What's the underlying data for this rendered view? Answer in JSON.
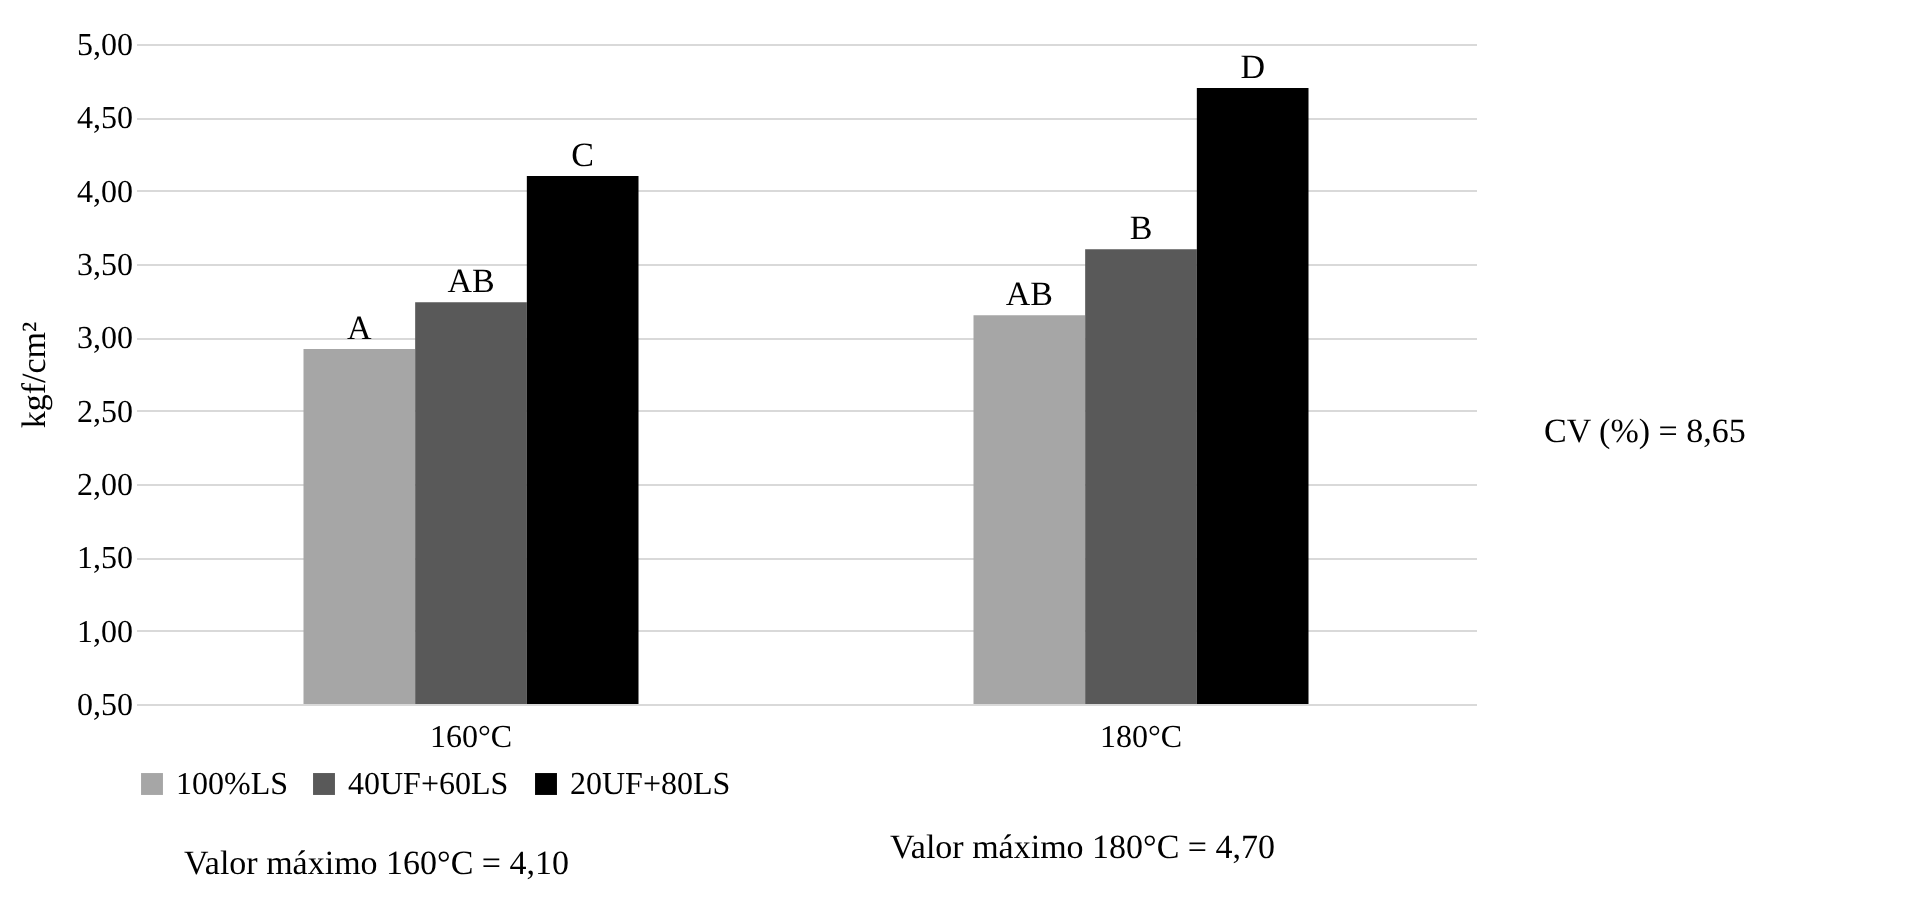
{
  "chart_data": {
    "type": "bar",
    "ylabel": "kgf/cm²",
    "categories": [
      "160°C",
      null,
      "180°C"
    ],
    "series": [
      {
        "name": "100%LS",
        "color": "#a6a6a6",
        "values": [
          2.92,
          null,
          3.15
        ],
        "value_labels": [
          "A",
          null,
          "AB"
        ]
      },
      {
        "name": "40UF+60LS",
        "color": "#595959",
        "values": [
          3.24,
          null,
          3.6
        ],
        "value_labels": [
          "AB",
          null,
          "B"
        ]
      },
      {
        "name": "20UF+80LS",
        "color": "#000000",
        "values": [
          4.1,
          null,
          4.7
        ],
        "value_labels": [
          "C",
          null,
          "D"
        ]
      }
    ],
    "ylim": [
      0.5,
      5
    ],
    "yticks": [
      {
        "value": 0.5,
        "label": "0,50"
      },
      {
        "value": 1,
        "label": "1,00"
      },
      {
        "value": 1.5,
        "label": "1,50"
      },
      {
        "value": 2,
        "label": "2,00"
      },
      {
        "value": 2.5,
        "label": "2,50"
      },
      {
        "value": 3,
        "label": "3,00"
      },
      {
        "value": 3.5,
        "label": "3,50"
      },
      {
        "value": 4,
        "label": "4,00"
      },
      {
        "value": 4.5,
        "label": "4,50"
      },
      {
        "value": 5,
        "label": "5,00"
      }
    ],
    "grid": "y",
    "legend": "bottom",
    "annotations": [
      "CV (%) = 8,65",
      "Valor máximo 160°C = 4,10",
      "Valor máximo 180°C = 4,70"
    ]
  }
}
